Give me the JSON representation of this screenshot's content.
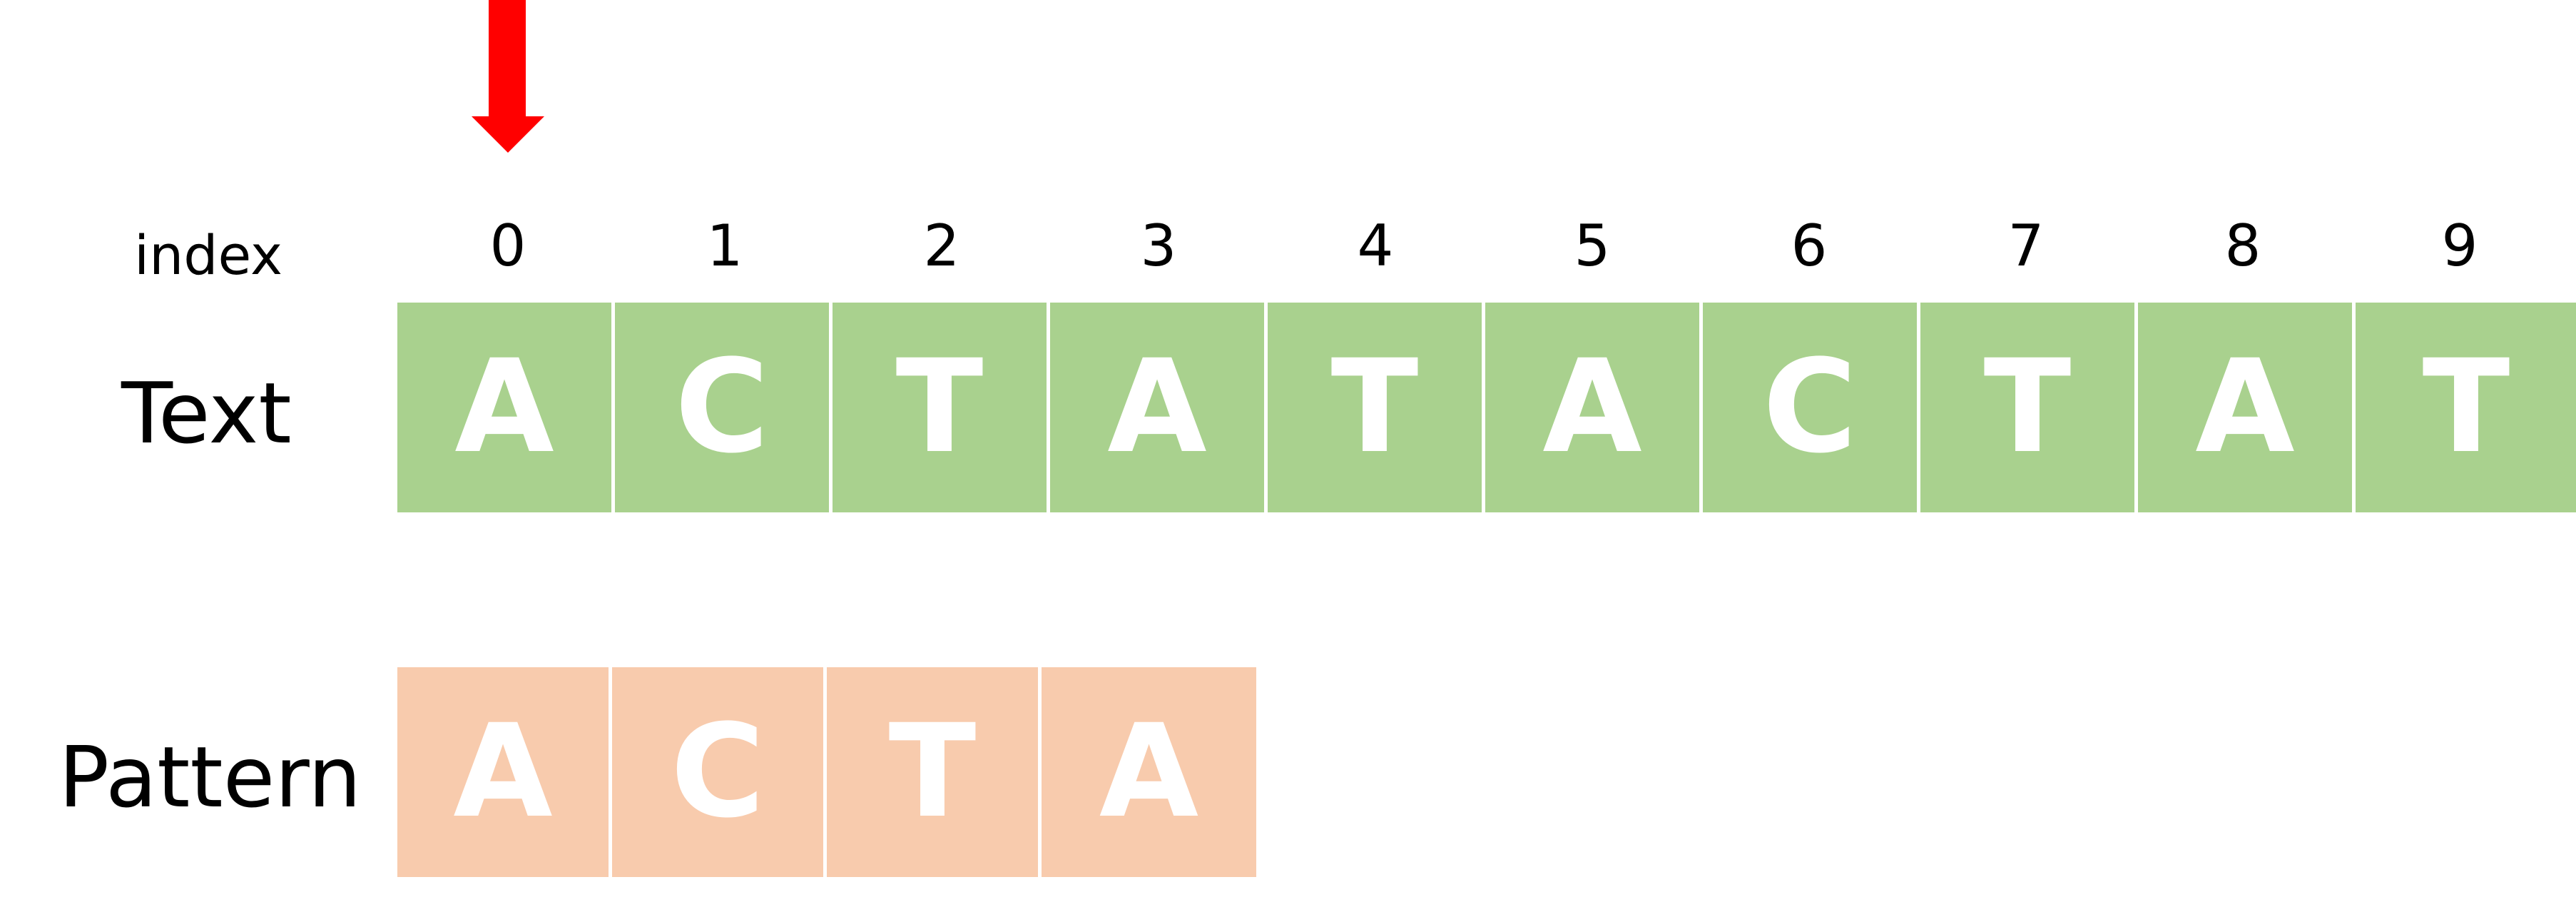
{
  "labels": {
    "index": "index",
    "text": "Text",
    "pattern": "Pattern"
  },
  "indices": [
    "0",
    "1",
    "2",
    "3",
    "4",
    "5",
    "6",
    "7",
    "8",
    "9"
  ],
  "text": [
    "A",
    "C",
    "T",
    "A",
    "T",
    "A",
    "C",
    "T",
    "A",
    "T"
  ],
  "pattern": [
    "A",
    "C",
    "T",
    "A"
  ],
  "pointer_index": 0,
  "colors": {
    "text_cell": "#a9d18e",
    "pattern_cell": "#f8cbad",
    "arrow": "#ff0000",
    "cell_text": "#ffffff"
  }
}
